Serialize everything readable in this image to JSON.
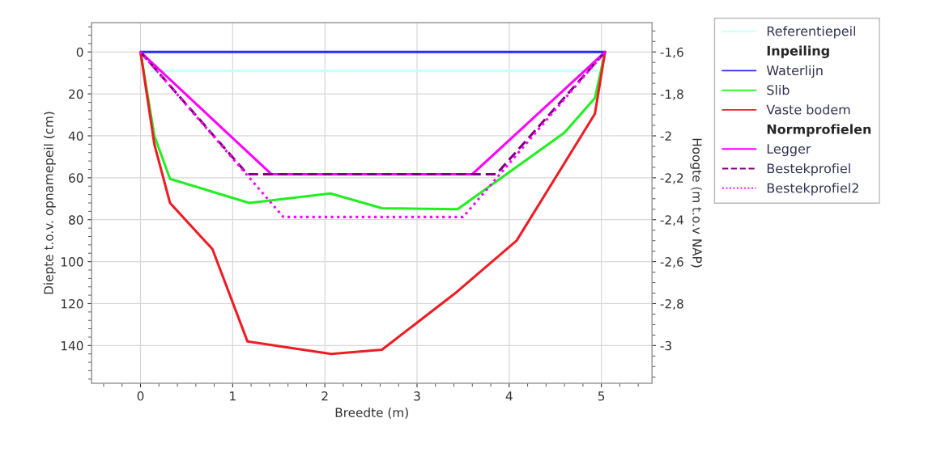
{
  "chart_data": {
    "type": "line",
    "xlabel": "Breedte (m)",
    "ylabel": "Diepte t.o.v. opnamepeil (cm)",
    "y2label": "Hoogte (m t.o.v NAP)",
    "xlim": [
      -0.53,
      5.55
    ],
    "xticks": [
      0,
      1,
      2,
      3,
      4,
      5
    ],
    "ylim": [
      158,
      -14
    ],
    "yticks": [
      0,
      20,
      40,
      60,
      80,
      100,
      120,
      140
    ],
    "y2lim": [
      -3.18,
      -1.46
    ],
    "y2ticks": [
      {
        "value": -1.6,
        "label": "-1,6"
      },
      {
        "value": -1.8,
        "label": "-1,8"
      },
      {
        "value": -2,
        "label": "-2"
      },
      {
        "value": -2.2,
        "label": "-2,2"
      },
      {
        "value": -2.4,
        "label": "-2,4"
      },
      {
        "value": -2.6,
        "label": "-2,6"
      },
      {
        "value": -2.8,
        "label": "-2,8"
      },
      {
        "value": -3,
        "label": "-3"
      }
    ],
    "grid": true,
    "legend": "right",
    "line_style": "solid",
    "marker": "none",
    "series": [
      {
        "name": "Referentiepeil",
        "color": "#c8ffff",
        "x": [
          0.12,
          4.95
        ],
        "values": [
          9,
          9
        ]
      },
      {
        "name": "Inpeiling"
      },
      {
        "name": "Waterlijn",
        "color": "#2a2af0",
        "x": [
          0,
          5.04
        ],
        "values": [
          0,
          0
        ]
      },
      {
        "name": "Slib",
        "color": "#22ee22",
        "x": [
          0,
          0.15,
          0.32,
          1.18,
          2.06,
          2.62,
          3.44,
          4.6,
          4.93,
          5.04
        ],
        "values": [
          0,
          40,
          60.5,
          72,
          67.5,
          74.5,
          75,
          38.5,
          22,
          0
        ]
      },
      {
        "name": "Vaste bodem",
        "color": "#ee1c24",
        "x": [
          0,
          0.15,
          0.32,
          0.78,
          1.16,
          2.07,
          2.62,
          3.43,
          4.08,
          4.93,
          5.04
        ],
        "values": [
          0,
          44,
          72,
          94,
          138,
          144,
          142,
          114.5,
          90,
          29.5,
          0
        ]
      },
      {
        "name": "Normprofielen"
      },
      {
        "name": "Legger",
        "color": "#ff00ff",
        "x": [
          0,
          1.42,
          3.6,
          5.04
        ],
        "values": [
          0,
          58.3,
          58.3,
          0
        ]
      },
      {
        "name": "Bestekprofiel",
        "color": "#800080",
        "line_style": "dashed",
        "x": [
          0,
          1.16,
          3.86,
          5.04
        ],
        "values": [
          0,
          58.3,
          58.3,
          0
        ]
      },
      {
        "name": "Bestekprofiel2",
        "color": "#ff00ff",
        "line_style": "dotted",
        "x": [
          0,
          1.55,
          3.5,
          5.04
        ],
        "values": [
          0,
          78.7,
          78.7,
          0
        ]
      }
    ]
  }
}
